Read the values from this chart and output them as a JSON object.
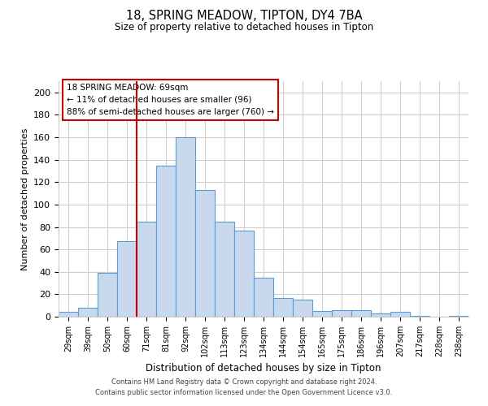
{
  "title": "18, SPRING MEADOW, TIPTON, DY4 7BA",
  "subtitle": "Size of property relative to detached houses in Tipton",
  "xlabel": "Distribution of detached houses by size in Tipton",
  "ylabel": "Number of detached properties",
  "bar_labels": [
    "29sqm",
    "39sqm",
    "50sqm",
    "60sqm",
    "71sqm",
    "81sqm",
    "92sqm",
    "102sqm",
    "113sqm",
    "123sqm",
    "134sqm",
    "144sqm",
    "154sqm",
    "165sqm",
    "175sqm",
    "186sqm",
    "196sqm",
    "207sqm",
    "217sqm",
    "228sqm",
    "238sqm"
  ],
  "bar_values": [
    4,
    8,
    39,
    67,
    85,
    135,
    160,
    113,
    85,
    77,
    35,
    17,
    15,
    5,
    6,
    6,
    3,
    4,
    1,
    0,
    1
  ],
  "bar_color": "#c9d9ed",
  "bar_edge_color": "#5b9bd5",
  "vline_index": 4,
  "vline_color": "#cc0000",
  "annotation_text": "18 SPRING MEADOW: 69sqm\n← 11% of detached houses are smaller (96)\n88% of semi-detached houses are larger (760) →",
  "annotation_box_facecolor": "#ffffff",
  "annotation_box_edgecolor": "#cc0000",
  "ylim": [
    0,
    210
  ],
  "yticks": [
    0,
    20,
    40,
    60,
    80,
    100,
    120,
    140,
    160,
    180,
    200
  ],
  "grid_color": "#cccccc",
  "background_color": "#ffffff",
  "footer_line1": "Contains HM Land Registry data © Crown copyright and database right 2024.",
  "footer_line2": "Contains public sector information licensed under the Open Government Licence v3.0."
}
